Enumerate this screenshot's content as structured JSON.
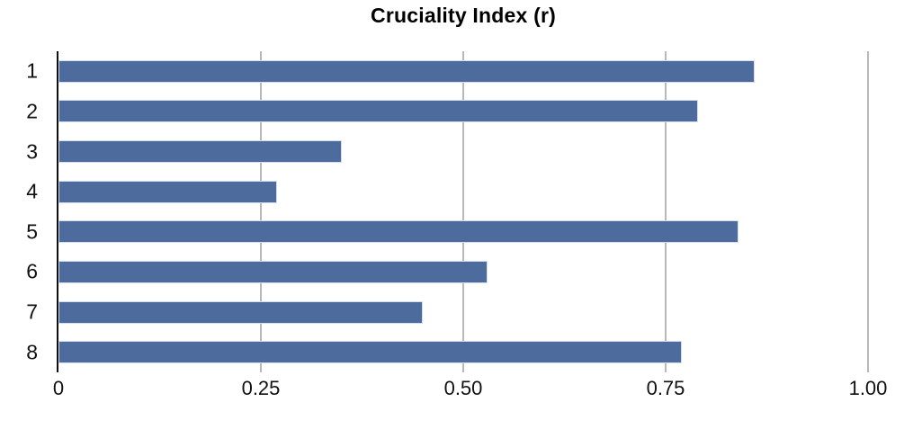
{
  "chart_data": {
    "type": "bar",
    "orientation": "horizontal",
    "title": "Cruciality Index (r)",
    "categories": [
      "1",
      "2",
      "3",
      "4",
      "5",
      "6",
      "7",
      "8"
    ],
    "values": [
      0.86,
      0.79,
      0.35,
      0.27,
      0.84,
      0.53,
      0.45,
      0.77
    ],
    "xlabel": "",
    "ylabel": "",
    "xlim": [
      0,
      1.0
    ],
    "xticks": [
      0,
      0.25,
      0.5,
      0.75,
      1.0
    ],
    "xtick_labels": [
      "0",
      "0.25",
      "0.50",
      "0.75",
      "1.00"
    ],
    "grid": true,
    "legend": false,
    "colors": {
      "bar_fill": "#4d6c9d",
      "bar_border": "#d3deee",
      "gridline": "#b8b8b8",
      "axis": "#111111",
      "text": "#111111",
      "background": "#ffffff"
    }
  }
}
